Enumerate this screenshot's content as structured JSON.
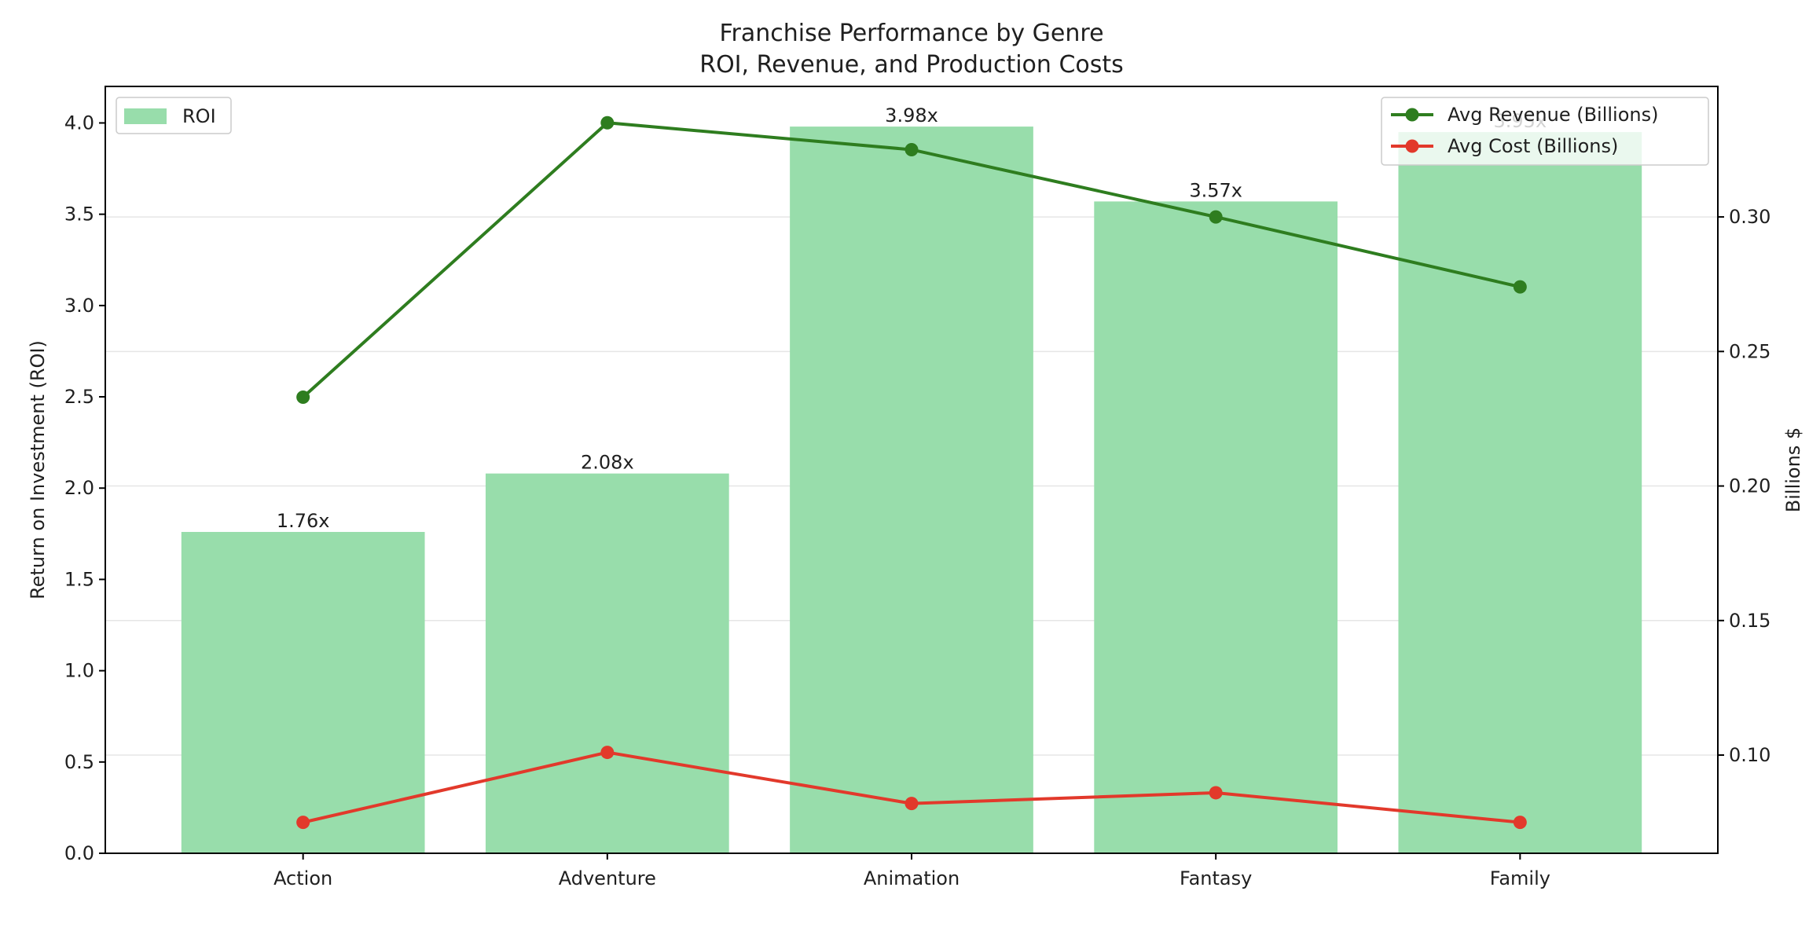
{
  "chart_data": {
    "type": "bar",
    "title": "Franchise Performance by Genre",
    "subtitle": "ROI, Revenue, and Production Costs",
    "categories": [
      "Action",
      "Adventure",
      "Animation",
      "Fantasy",
      "Family"
    ],
    "ylabel_left": "Return on Investment (ROI)",
    "ylabel_right": "Billions $",
    "ylim_left": [
      0,
      4.2
    ],
    "yticks_left": [
      0.0,
      0.5,
      1.0,
      1.5,
      2.0,
      2.5,
      3.0,
      3.5,
      4.0
    ],
    "ylim_right": [
      0.0635,
      0.3485
    ],
    "yticks_right": [
      0.1,
      0.15,
      0.2,
      0.25,
      0.3
    ],
    "grid": "right-axis horizontal lines",
    "series": [
      {
        "name": "ROI",
        "kind": "bar",
        "axis": "left",
        "color": "#98ddab",
        "values": [
          1.76,
          2.08,
          3.98,
          3.57,
          3.95
        ],
        "labels": [
          "1.76x",
          "2.08x",
          "3.98x",
          "3.57x",
          "3.95x"
        ]
      },
      {
        "name": "Avg Revenue (Billions)",
        "kind": "line",
        "axis": "right",
        "color": "#2e7d1f",
        "values": [
          0.233,
          0.335,
          0.325,
          0.3,
          0.274
        ]
      },
      {
        "name": "Avg Cost (Billions)",
        "kind": "line",
        "axis": "right",
        "color": "#e2392b",
        "values": [
          0.075,
          0.101,
          0.082,
          0.086,
          0.075
        ]
      }
    ],
    "legends": [
      {
        "position": "upper-left",
        "entries": [
          "ROI"
        ]
      },
      {
        "position": "upper-right",
        "entries": [
          "Avg Revenue (Billions)",
          "Avg Cost (Billions)"
        ]
      }
    ]
  }
}
